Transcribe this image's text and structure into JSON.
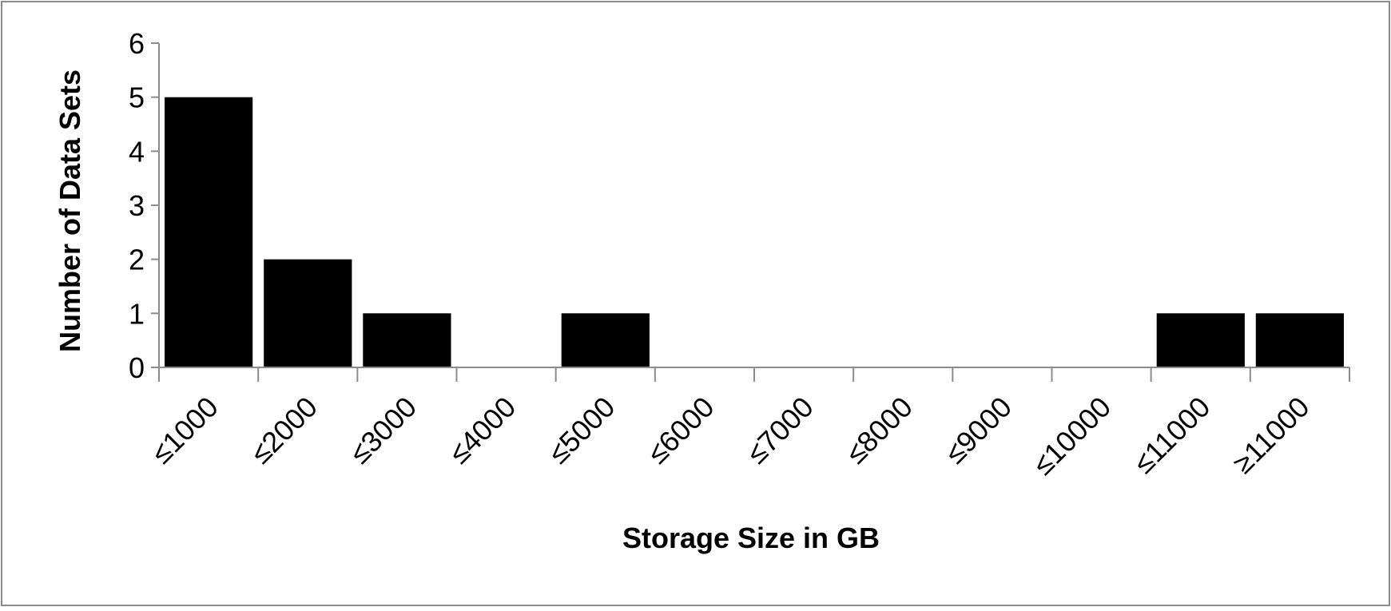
{
  "chart_data": {
    "type": "bar",
    "categories": [
      "≤1000",
      "≤2000",
      "≤3000",
      "≤4000",
      "≤5000",
      "≤6000",
      "≤7000",
      "≤8000",
      "≤9000",
      "≤10000",
      "≤11000",
      "≥11000"
    ],
    "values": [
      5,
      2,
      1,
      0,
      1,
      0,
      0,
      0,
      0,
      0,
      1,
      1
    ],
    "title": "",
    "xlabel": "Storage Size in GB",
    "ylabel": "Number of Data Sets",
    "ylim": [
      0,
      6
    ],
    "yticks": [
      "0",
      "1",
      "2",
      "3",
      "4",
      "5",
      "6"
    ],
    "grid": false,
    "legend": "none",
    "bar_color": "#000000"
  }
}
